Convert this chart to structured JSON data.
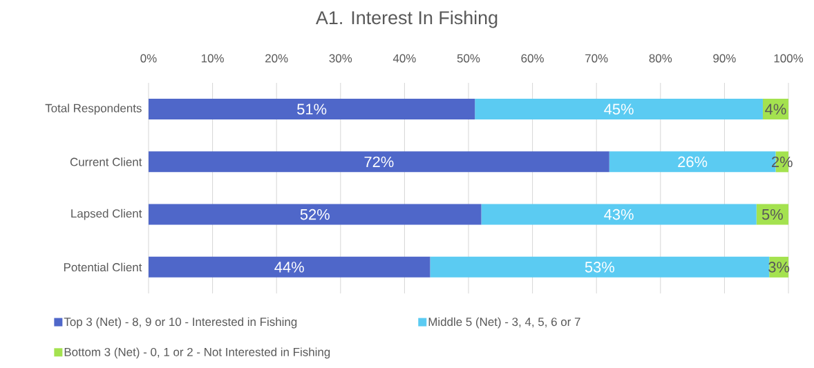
{
  "chart_data": {
    "type": "bar",
    "title": "A1. Interest In Fishing",
    "orientation": "horizontal",
    "stacked": true,
    "categories": [
      "Total Respondents",
      "Current Client",
      "Lapsed Client",
      "Potential Client"
    ],
    "series": [
      {
        "name": "Top 3 (Net) - 8, 9 or 10 - Interested in Fishing",
        "color": "#4f67c9",
        "values": [
          51,
          72,
          52,
          44
        ],
        "value_labels": [
          "51%",
          "72%",
          "52%",
          "44%"
        ]
      },
      {
        "name": "Middle 5 (Net) - 3, 4, 5, 6 or 7",
        "color": "#5bcbf2",
        "values": [
          45,
          26,
          43,
          53
        ],
        "value_labels": [
          "45%",
          "26%",
          "43%",
          "53%"
        ]
      },
      {
        "name": "Bottom 3 (Net) - 0, 1 or 2 - Not Interested in Fishing",
        "color": "#a4e24f",
        "values": [
          4,
          2,
          5,
          3
        ],
        "value_labels": [
          "4%",
          "2%",
          "5%",
          "3%"
        ]
      }
    ],
    "xlim": [
      0,
      100
    ],
    "xticks": [
      {
        "value": 0,
        "label": "0%"
      },
      {
        "value": 10,
        "label": "10%"
      },
      {
        "value": 20,
        "label": "20%"
      },
      {
        "value": 30,
        "label": "30%"
      },
      {
        "value": 40,
        "label": "40%"
      },
      {
        "value": 50,
        "label": "50%"
      },
      {
        "value": 60,
        "label": "60%"
      },
      {
        "value": 70,
        "label": "70%"
      },
      {
        "value": 80,
        "label": "80%"
      },
      {
        "value": 90,
        "label": "90%"
      },
      {
        "value": 100,
        "label": "100%"
      }
    ],
    "grid": "x",
    "legend": "bottom"
  }
}
